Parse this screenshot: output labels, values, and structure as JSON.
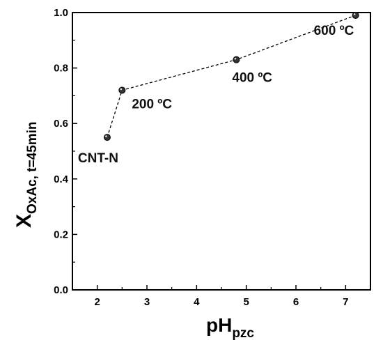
{
  "chart_data": {
    "type": "scatter",
    "title": "",
    "xlabel": {
      "main": "pH",
      "sub": "pzc"
    },
    "ylabel": {
      "main": "X",
      "sub": "OxAc, t=45min"
    },
    "xlim": [
      1.5,
      7.5
    ],
    "ylim": [
      0.0,
      1.0
    ],
    "xticks": [
      "2",
      "3",
      "4",
      "5",
      "6",
      "7"
    ],
    "yticks": [
      "0.0",
      "0.2",
      "0.4",
      "0.6",
      "0.8",
      "1.0"
    ],
    "grid": false,
    "line_style": "dashed",
    "series": [
      {
        "points": [
          {
            "x": 2.2,
            "y": 0.55,
            "label": "CNT-N"
          },
          {
            "x": 2.5,
            "y": 0.72,
            "label": "200 ºC"
          },
          {
            "x": 4.8,
            "y": 0.83,
            "label": "400 ºC"
          },
          {
            "x": 7.2,
            "y": 0.99,
            "label": "600 ºC"
          }
        ]
      }
    ],
    "colors": {
      "marker": "#333333",
      "line": "#000000",
      "frame": "#000000"
    }
  }
}
